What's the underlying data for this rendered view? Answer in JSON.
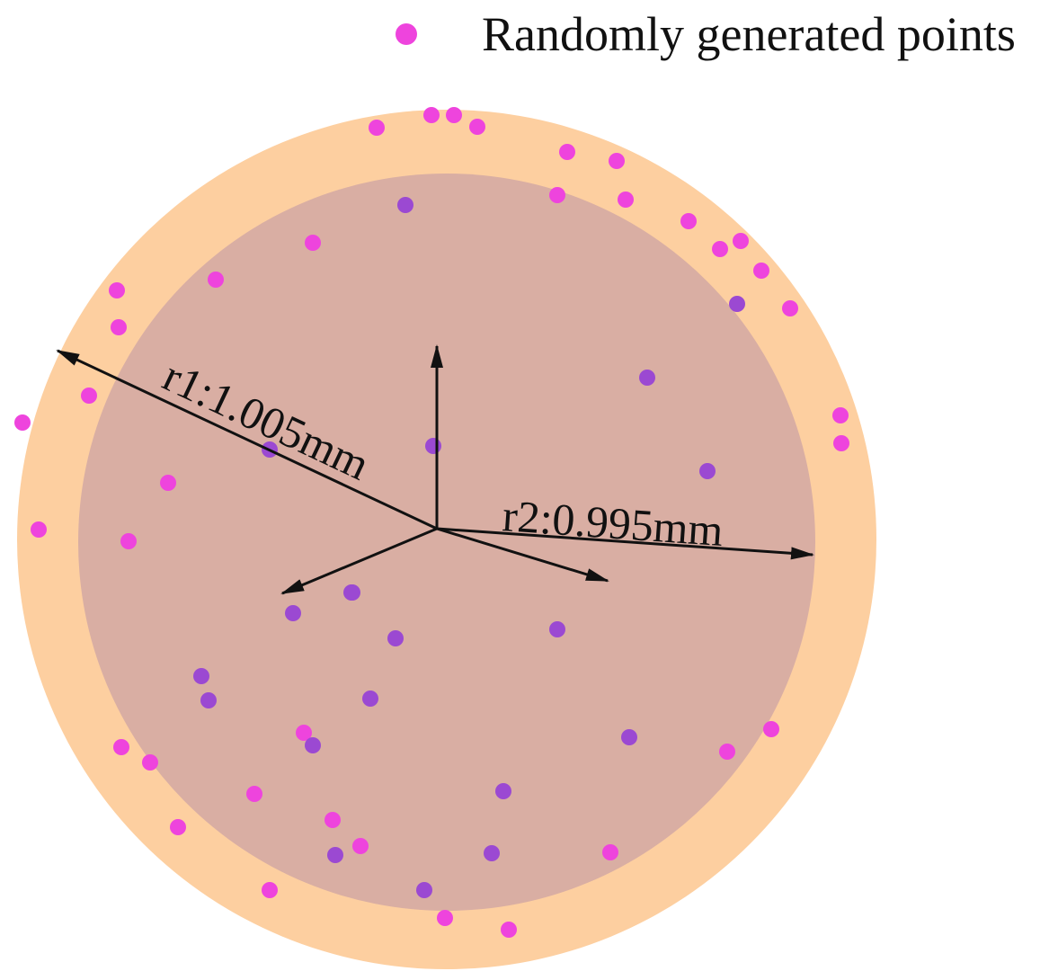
{
  "legend": {
    "label": "Randomly generated points",
    "marker_color": "#ee44dd"
  },
  "annotations": {
    "r1": "r1:1.005mm",
    "r2": "r2:0.995mm"
  },
  "colors": {
    "outer_disk": "#fdcfa0",
    "inner_disk": "#d9aea3",
    "point_outer": "#ee44dd",
    "point_inner": "#9b49d2",
    "arrow": "#111111"
  },
  "points_count": {
    "annulus": 37,
    "inner": 20
  }
}
